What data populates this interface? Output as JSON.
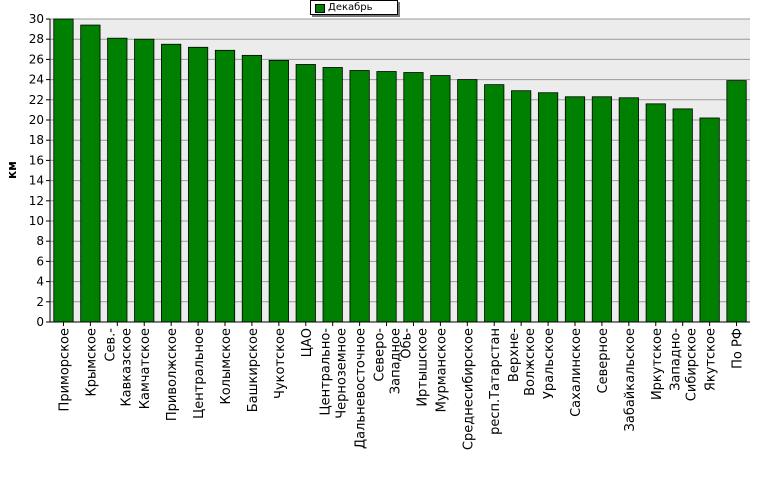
{
  "chart_data": {
    "type": "bar",
    "title": "",
    "xlabel": "",
    "ylabel": "км",
    "ylim": [
      0,
      30
    ],
    "yticks": [
      0,
      2,
      4,
      6,
      8,
      10,
      12,
      14,
      16,
      18,
      20,
      22,
      24,
      26,
      28,
      30
    ],
    "grid": true,
    "legend_position": "top-center",
    "bar_color": "#008000",
    "plot_background": "#ececec",
    "categories": [
      [
        "Приморское"
      ],
      [
        "Крымское"
      ],
      [
        "Сев.-",
        "Кавказское"
      ],
      [
        "Камчатское"
      ],
      [
        "Приволжское"
      ],
      [
        "Центральное"
      ],
      [
        "Колымское"
      ],
      [
        "Башкирское"
      ],
      [
        "Чукотское"
      ],
      [
        "ЦАО"
      ],
      [
        "Центрально-",
        "Черноземное"
      ],
      [
        "Дальневосточное"
      ],
      [
        "Северо-",
        "Западное"
      ],
      [
        "Обь-",
        "Иртышское"
      ],
      [
        "Мурманское"
      ],
      [
        "Среднесибирское"
      ],
      [
        "респ.Татарстан"
      ],
      [
        "Верхне-",
        "Волжское"
      ],
      [
        "Уральское"
      ],
      [
        "Сахалинское"
      ],
      [
        "Северное"
      ],
      [
        "Забайкальское"
      ],
      [
        "Иркутское"
      ],
      [
        "Западно-",
        "Сибирское"
      ],
      [
        "Якутское"
      ],
      [
        "По РФ"
      ]
    ],
    "series": [
      {
        "name": "Декабрь",
        "values": [
          30.0,
          29.4,
          28.1,
          28.0,
          27.5,
          27.2,
          26.9,
          26.4,
          25.9,
          25.5,
          25.2,
          24.9,
          24.8,
          24.7,
          24.4,
          24.0,
          23.5,
          22.9,
          22.7,
          22.3,
          22.3,
          22.2,
          21.6,
          21.1,
          20.2,
          23.9
        ]
      }
    ]
  }
}
